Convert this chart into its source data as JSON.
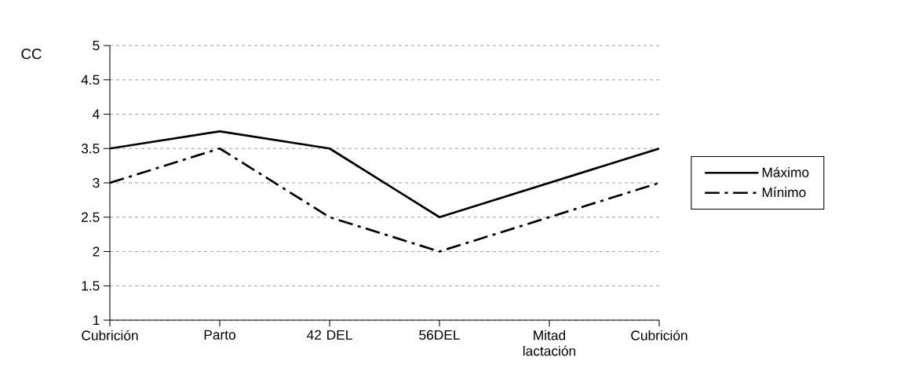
{
  "chart_data": {
    "type": "line",
    "ylabel": "CC",
    "categories": [
      "Cubrición",
      "Parto",
      "42 DEL",
      "56DEL",
      "Mitad lactación",
      "Cubrición"
    ],
    "series": [
      {
        "name": "Máximo",
        "color": "#000000",
        "line_style": "solid",
        "values": [
          3.5,
          3.75,
          3.5,
          2.5,
          3.0,
          3.5
        ]
      },
      {
        "name": "Mínimo",
        "color": "#000000",
        "line_style": "dashed",
        "values": [
          3.0,
          3.5,
          2.5,
          2.0,
          2.5,
          3.0
        ]
      }
    ],
    "ylim": [
      1,
      5
    ],
    "yticks": [
      1,
      1.5,
      2,
      2.5,
      3,
      3.5,
      4,
      4.5,
      5
    ],
    "grid": "y",
    "legend": "right",
    "marker": "none"
  }
}
